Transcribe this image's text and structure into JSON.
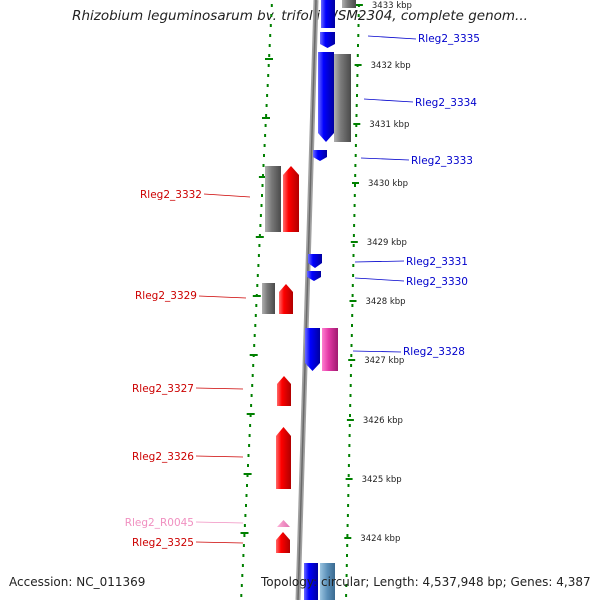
{
  "title": "Rhizobium leguminosarum bv. trifolii WSM2304, complete genom...",
  "accession": "Accession: NC_011369",
  "topology": "Topology: circular; Length: 4,537,948 bp; Genes: 4,387",
  "colors": {
    "forward_gene": "#ff0000",
    "reverse_gene": "#0000ff",
    "rna": "#e43aa7",
    "rrna_label": "#f0a0c8",
    "pseudo_gene": "#808080",
    "ruler": "#008000",
    "backbone": "#a0a0a0"
  },
  "ticks": [
    {
      "label": "3433 kbp"
    },
    {
      "label": "3432 kbp"
    },
    {
      "label": "3431 kbp"
    },
    {
      "label": "3430 kbp"
    },
    {
      "label": "3429 kbp"
    },
    {
      "label": "3428 kbp"
    },
    {
      "label": "3427 kbp"
    },
    {
      "label": "3426 kbp"
    },
    {
      "label": "3425 kbp"
    },
    {
      "label": "3424 kbp"
    }
  ],
  "gene_labels_right": [
    {
      "name": "Rleg2_3335"
    },
    {
      "name": "Rleg2_3334"
    },
    {
      "name": "Rleg2_3333"
    },
    {
      "name": "Rleg2_3331"
    },
    {
      "name": "Rleg2_3330"
    },
    {
      "name": "Rleg2_3328"
    }
  ],
  "gene_labels_left": [
    {
      "name": "Rleg2_3332"
    },
    {
      "name": "Rleg2_3329"
    },
    {
      "name": "Rleg2_3327"
    },
    {
      "name": "Rleg2_3326"
    },
    {
      "name": "Rleg2_R0045"
    },
    {
      "name": "Rleg2_3325"
    }
  ]
}
